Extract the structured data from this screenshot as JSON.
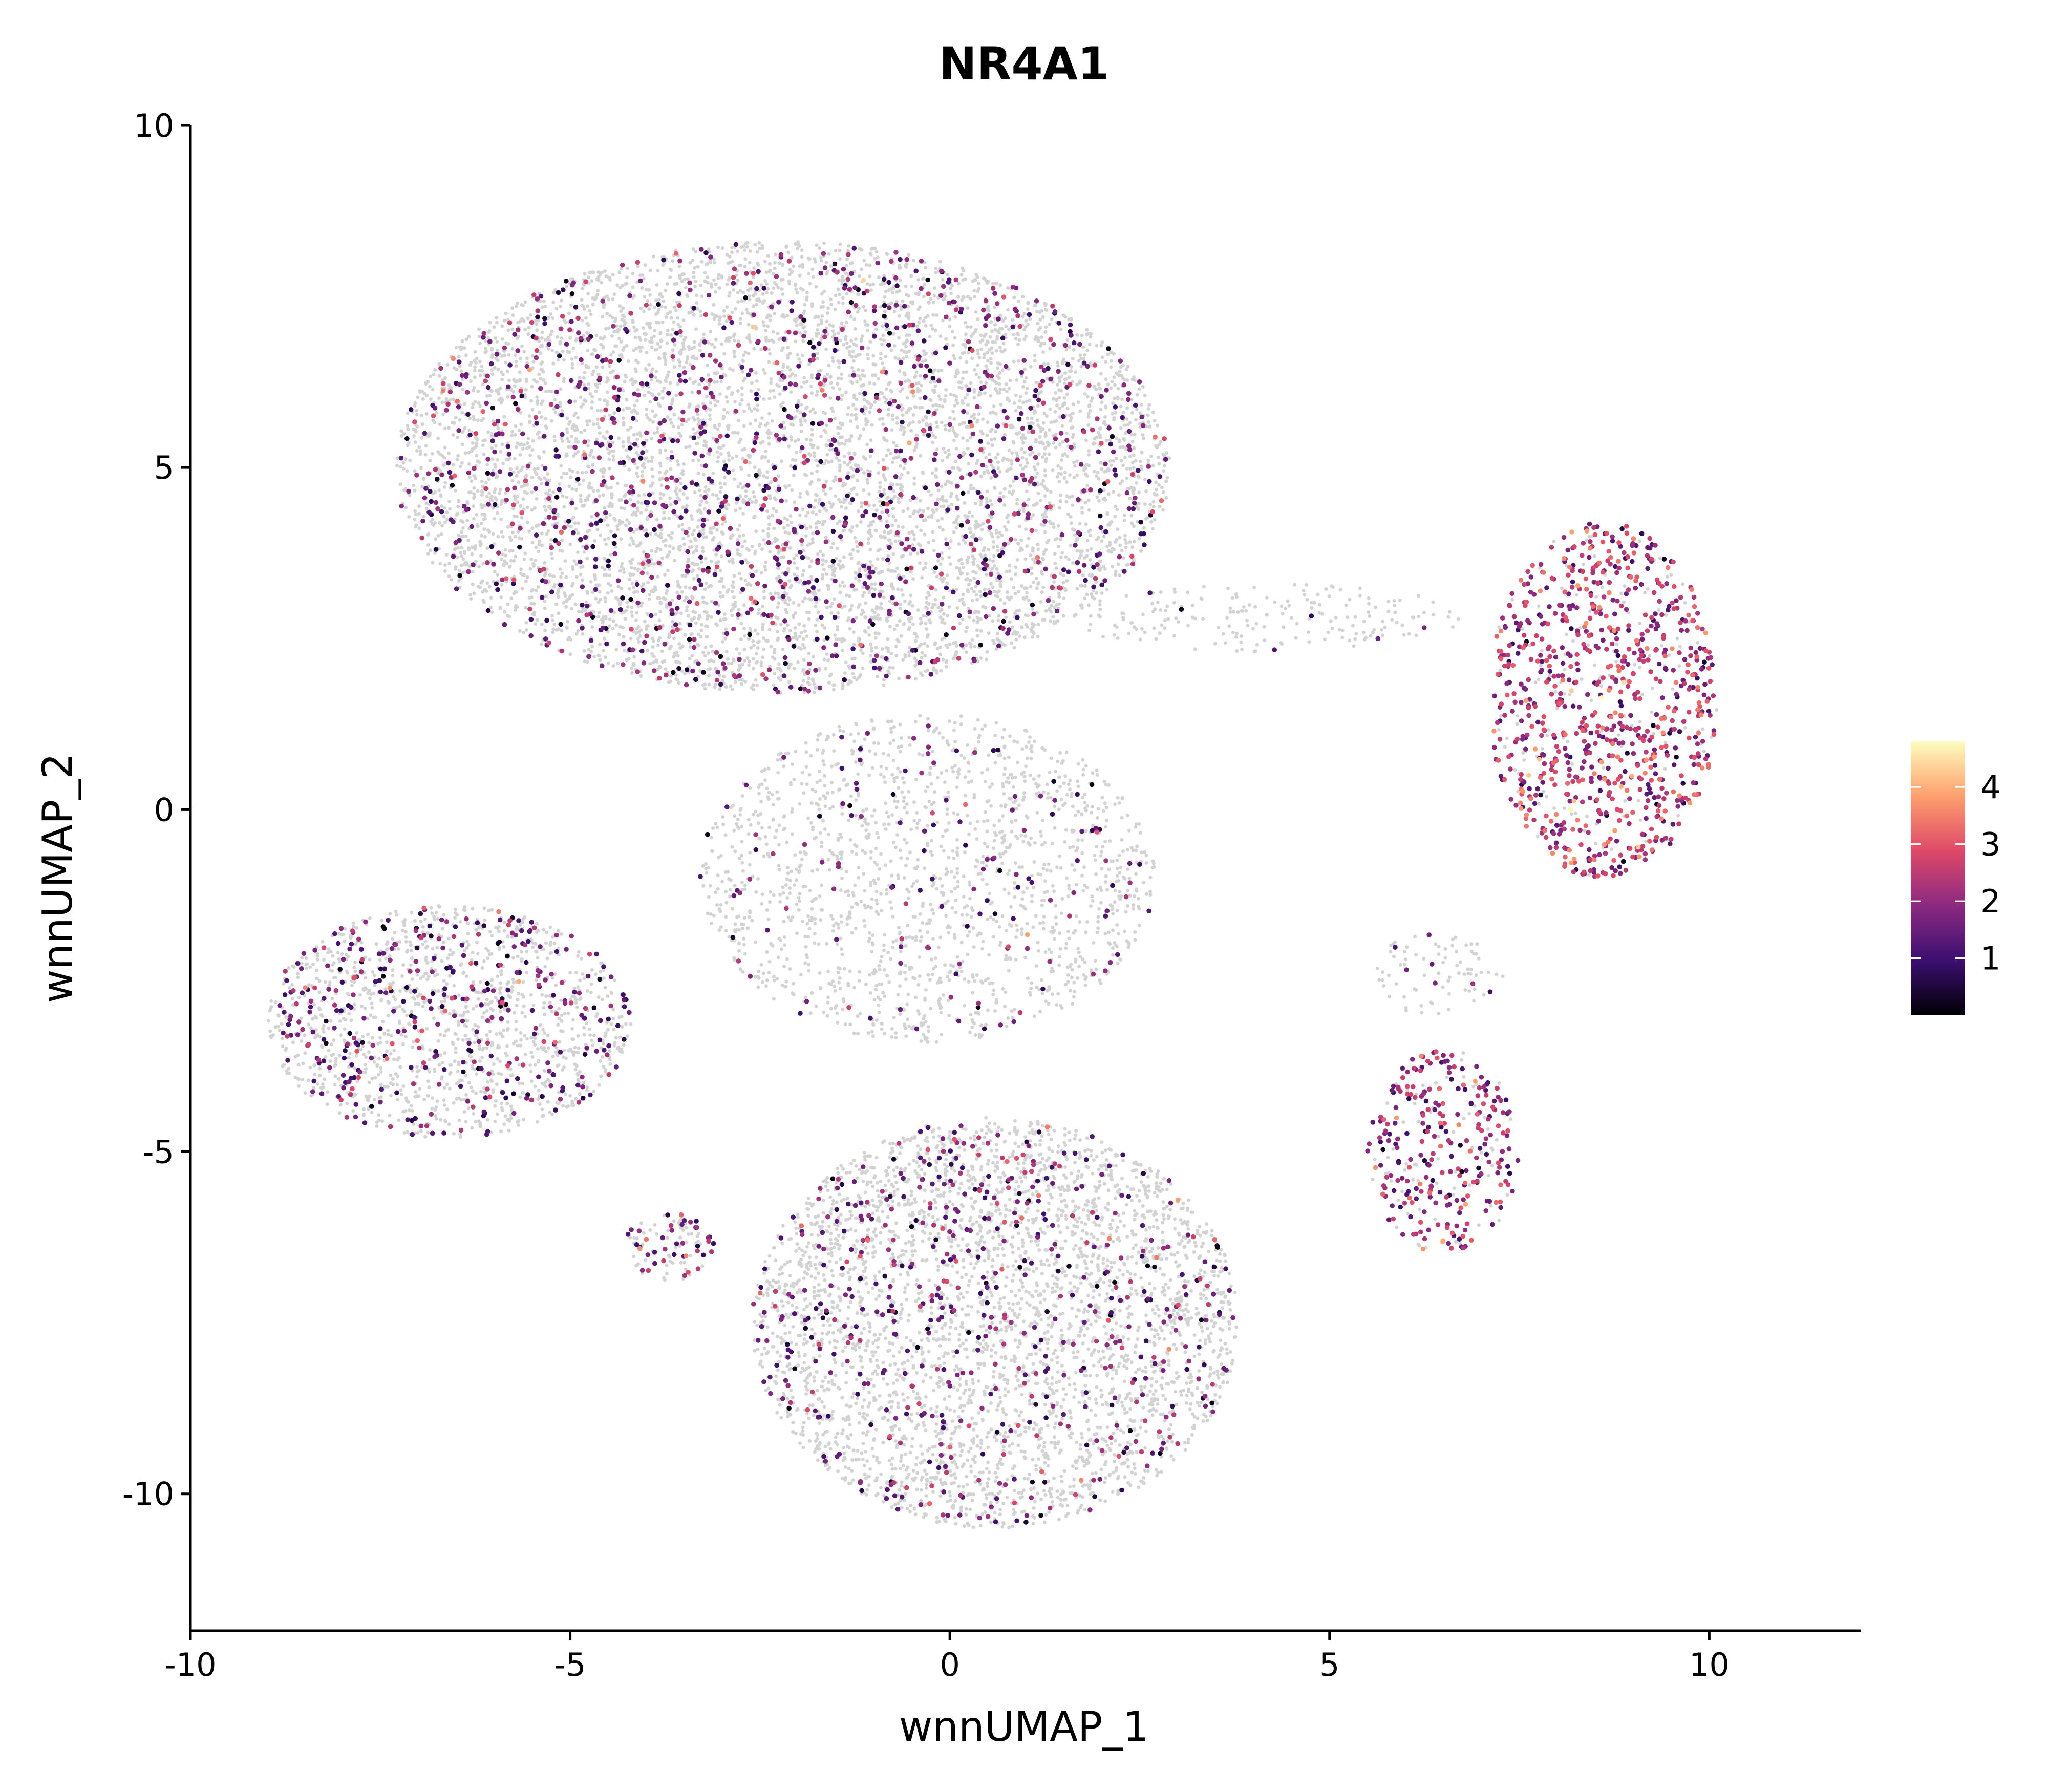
{
  "chart_data": {
    "type": "scatter",
    "title": "NR4A1",
    "xlabel": "wnnUMAP_1",
    "ylabel": "wnnUMAP_2",
    "xlim": [
      -10,
      12
    ],
    "ylim": [
      -12,
      10
    ],
    "xticks": [
      -10,
      -5,
      0,
      5,
      10
    ],
    "xtick_labels": [
      "-10",
      "-5",
      "0",
      "5",
      "10"
    ],
    "yticks": [
      -10,
      -5,
      0,
      5,
      10
    ],
    "ytick_labels": [
      "-10",
      "-5",
      "0",
      "5",
      "10"
    ],
    "background_color": "#d3d3d3",
    "colorscale": [
      "#000004",
      "#3b0f70",
      "#8c2981",
      "#de4968",
      "#fe9f6d",
      "#fcfdbf"
    ],
    "color_range": [
      0,
      4.8
    ],
    "colorbar_ticks": [
      1,
      2,
      3,
      4
    ],
    "colorbar_labels": [
      "1",
      "2",
      "3",
      "4"
    ],
    "grid": false,
    "legend_position": "right",
    "clusters": [
      {
        "name": "upper-left lobe",
        "cx": -2.2,
        "cy": 5.0,
        "rx": 5.1,
        "ry": 3.3,
        "background_density": 1.0,
        "expressing_fraction": 0.16,
        "mean_expression": 1.6
      },
      {
        "name": "left arm",
        "cx": -6.6,
        "cy": -3.1,
        "rx": 2.4,
        "ry": 1.7,
        "background_density": 0.9,
        "expressing_fraction": 0.22,
        "mean_expression": 1.5
      },
      {
        "name": "center web",
        "cx": -0.3,
        "cy": -1.0,
        "rx": 3.0,
        "ry": 2.4,
        "background_density": 0.55,
        "expressing_fraction": 0.08,
        "mean_expression": 1.5
      },
      {
        "name": "bottom lobe",
        "cx": 0.6,
        "cy": -7.5,
        "rx": 3.2,
        "ry": 3.0,
        "background_density": 1.0,
        "expressing_fraction": 0.14,
        "mean_expression": 1.6
      },
      {
        "name": "small lower-left blob",
        "cx": -3.7,
        "cy": -6.4,
        "rx": 0.6,
        "ry": 0.5,
        "background_density": 0.8,
        "expressing_fraction": 0.35,
        "mean_expression": 1.8
      },
      {
        "name": "right upper cluster",
        "cx": 8.6,
        "cy": 1.6,
        "rx": 1.5,
        "ry": 2.6,
        "background_density": 0.6,
        "expressing_fraction": 0.85,
        "mean_expression": 2.3
      },
      {
        "name": "right lower cluster",
        "cx": 6.5,
        "cy": -5.0,
        "rx": 1.0,
        "ry": 1.5,
        "background_density": 0.5,
        "expressing_fraction": 0.8,
        "mean_expression": 2.0
      },
      {
        "name": "bridge strand",
        "cx": 4.2,
        "cy": 2.8,
        "rx": 2.6,
        "ry": 0.5,
        "background_density": 0.35,
        "expressing_fraction": 0.02,
        "mean_expression": 1.2
      },
      {
        "name": "connector strand",
        "cx": 6.4,
        "cy": -2.4,
        "rx": 0.9,
        "ry": 0.6,
        "background_density": 0.35,
        "expressing_fraction": 0.15,
        "mean_expression": 1.4
      }
    ]
  }
}
